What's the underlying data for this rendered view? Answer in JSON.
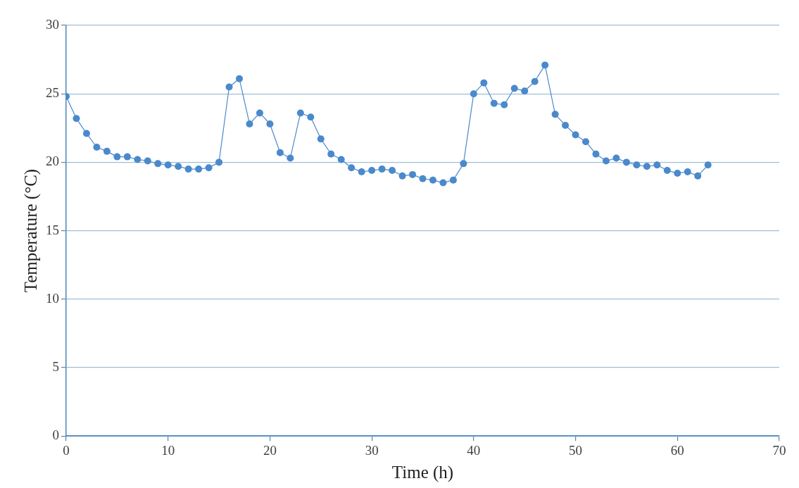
{
  "chart_data": {
    "type": "line",
    "xlabel": "Time (h)",
    "ylabel": "Temperature (°C)",
    "x": [
      0,
      1,
      2,
      3,
      4,
      5,
      6,
      7,
      8,
      9,
      10,
      11,
      12,
      13,
      14,
      15,
      16,
      17,
      18,
      19,
      20,
      21,
      22,
      23,
      24,
      25,
      26,
      27,
      28,
      29,
      30,
      31,
      32,
      33,
      34,
      35,
      36,
      37,
      38,
      39,
      40,
      41,
      42,
      43,
      44,
      45,
      46,
      47,
      48,
      49,
      50,
      51,
      52,
      53,
      54,
      55,
      56,
      57,
      58,
      59,
      60,
      61,
      62,
      63
    ],
    "series": [
      {
        "color": "#4a89cc",
        "values": [
          24.8,
          23.2,
          22.1,
          21.1,
          20.8,
          20.4,
          20.4,
          20.2,
          20.1,
          19.9,
          19.8,
          19.7,
          19.5,
          19.5,
          19.6,
          20.0,
          25.5,
          26.1,
          22.8,
          23.6,
          22.8,
          20.7,
          20.3,
          23.6,
          23.3,
          21.7,
          20.6,
          20.2,
          19.6,
          19.3,
          19.4,
          19.5,
          19.4,
          19.0,
          19.1,
          18.8,
          18.7,
          18.5,
          18.7,
          19.9,
          25.0,
          25.8,
          24.3,
          24.2,
          25.4,
          25.2,
          25.9,
          27.1,
          23.5,
          22.7,
          22.0,
          21.5,
          20.6,
          20.1,
          20.3,
          20.0,
          19.8,
          19.7,
          19.8,
          19.4,
          19.2,
          19.3,
          19.0,
          19.8
        ]
      }
    ],
    "xlim": [
      0,
      70
    ],
    "xticks": [
      0,
      10,
      20,
      30,
      40,
      50,
      60,
      70
    ],
    "ylim": [
      0,
      30
    ],
    "yticks": [
      0,
      5,
      10,
      15,
      20,
      25,
      30
    ],
    "grid": "y",
    "legend": false,
    "marker": "circle",
    "line_style": "solid"
  }
}
